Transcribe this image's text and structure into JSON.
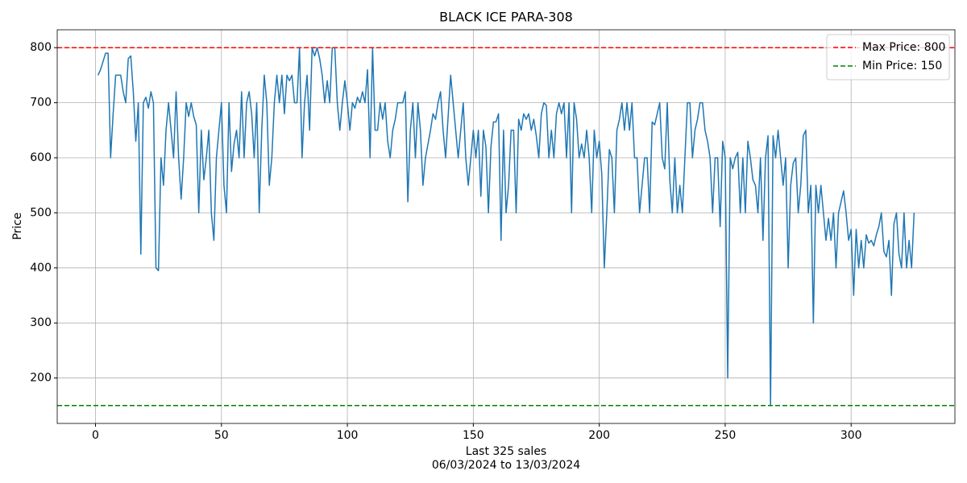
{
  "chart_data": {
    "type": "line",
    "title": "BLACK ICE PARA-308",
    "xlabel": [
      "Last 325 sales",
      "06/03/2024 to 13/03/2024"
    ],
    "ylabel": "Price",
    "x": [
      1,
      2,
      3,
      4,
      5,
      6,
      7,
      8,
      9,
      10,
      11,
      12,
      13,
      14,
      15,
      16,
      17,
      18,
      19,
      20,
      21,
      22,
      23,
      24,
      25,
      26,
      27,
      28,
      29,
      30,
      31,
      32,
      33,
      34,
      35,
      36,
      37,
      38,
      39,
      40,
      41,
      42,
      43,
      44,
      45,
      46,
      47,
      48,
      49,
      50,
      51,
      52,
      53,
      54,
      55,
      56,
      57,
      58,
      59,
      60,
      61,
      62,
      63,
      64,
      65,
      66,
      67,
      68,
      69,
      70,
      71,
      72,
      73,
      74,
      75,
      76,
      77,
      78,
      79,
      80,
      81,
      82,
      83,
      84,
      85,
      86,
      87,
      88,
      89,
      90,
      91,
      92,
      93,
      94,
      95,
      96,
      97,
      98,
      99,
      100,
      101,
      102,
      103,
      104,
      105,
      106,
      107,
      108,
      109,
      110,
      111,
      112,
      113,
      114,
      115,
      116,
      117,
      118,
      119,
      120,
      121,
      122,
      123,
      124,
      125,
      126,
      127,
      128,
      129,
      130,
      131,
      132,
      133,
      134,
      135,
      136,
      137,
      138,
      139,
      140,
      141,
      142,
      143,
      144,
      145,
      146,
      147,
      148,
      149,
      150,
      151,
      152,
      153,
      154,
      155,
      156,
      157,
      158,
      159,
      160,
      161,
      162,
      163,
      164,
      165,
      166,
      167,
      168,
      169,
      170,
      171,
      172,
      173,
      174,
      175,
      176,
      177,
      178,
      179,
      180,
      181,
      182,
      183,
      184,
      185,
      186,
      187,
      188,
      189,
      190,
      191,
      192,
      193,
      194,
      195,
      196,
      197,
      198,
      199,
      200,
      201,
      202,
      203,
      204,
      205,
      206,
      207,
      208,
      209,
      210,
      211,
      212,
      213,
      214,
      215,
      216,
      217,
      218,
      219,
      220,
      221,
      222,
      223,
      224,
      225,
      226,
      227,
      228,
      229,
      230,
      231,
      232,
      233,
      234,
      235,
      236,
      237,
      238,
      239,
      240,
      241,
      242,
      243,
      244,
      245,
      246,
      247,
      248,
      249,
      250,
      251,
      252,
      253,
      254,
      255,
      256,
      257,
      258,
      259,
      260,
      261,
      262,
      263,
      264,
      265,
      266,
      267,
      268,
      269,
      270,
      271,
      272,
      273,
      274,
      275,
      276,
      277,
      278,
      279,
      280,
      281,
      282,
      283,
      284,
      285,
      286,
      287,
      288,
      289,
      290,
      291,
      292,
      293,
      294,
      295,
      296,
      297,
      298,
      299,
      300,
      301,
      302,
      303,
      304,
      305,
      306,
      307,
      308,
      309,
      310,
      311,
      312,
      313,
      314,
      315,
      316,
      317,
      318,
      319,
      320,
      321,
      322,
      323,
      324,
      325
    ],
    "series": [
      {
        "color": "#1f77b4",
        "values": [
          750,
          760,
          775,
          790,
          790,
          600,
          680,
          750,
          750,
          750,
          720,
          700,
          780,
          785,
          720,
          630,
          700,
          425,
          700,
          710,
          690,
          720,
          700,
          400,
          395,
          600,
          550,
          650,
          700,
          650,
          600,
          720,
          600,
          525,
          600,
          700,
          675,
          700,
          675,
          660,
          500,
          650,
          560,
          600,
          650,
          500,
          450,
          600,
          650,
          700,
          550,
          500,
          700,
          575,
          625,
          650,
          600,
          720,
          600,
          700,
          720,
          680,
          600,
          700,
          500,
          650,
          750,
          700,
          550,
          600,
          700,
          750,
          700,
          750,
          680,
          750,
          740,
          750,
          700,
          700,
          800,
          600,
          700,
          750,
          650,
          800,
          785,
          800,
          780,
          750,
          700,
          740,
          700,
          800,
          800,
          700,
          650,
          700,
          740,
          700,
          650,
          700,
          690,
          710,
          700,
          720,
          700,
          760,
          600,
          800,
          650,
          650,
          700,
          670,
          700,
          630,
          600,
          650,
          670,
          700,
          700,
          700,
          720,
          520,
          650,
          700,
          600,
          700,
          650,
          550,
          600,
          625,
          650,
          680,
          670,
          700,
          720,
          650,
          600,
          675,
          750,
          700,
          650,
          600,
          650,
          700,
          600,
          550,
          600,
          650,
          600,
          650,
          530,
          650,
          620,
          500,
          620,
          665,
          665,
          680,
          450,
          650,
          500,
          550,
          650,
          650,
          500,
          670,
          650,
          680,
          670,
          680,
          650,
          670,
          640,
          600,
          680,
          700,
          695,
          600,
          650,
          600,
          680,
          700,
          680,
          700,
          600,
          700,
          500,
          700,
          670,
          600,
          625,
          600,
          650,
          600,
          500,
          650,
          600,
          630,
          570,
          400,
          500,
          615,
          600,
          500,
          650,
          670,
          700,
          650,
          700,
          650,
          700,
          600,
          600,
          500,
          550,
          600,
          600,
          500,
          665,
          660,
          680,
          700,
          600,
          580,
          700,
          560,
          500,
          600,
          500,
          550,
          500,
          600,
          700,
          700,
          600,
          650,
          670,
          700,
          700,
          650,
          630,
          600,
          500,
          600,
          600,
          475,
          630,
          600,
          200,
          600,
          580,
          600,
          610,
          500,
          600,
          500,
          630,
          600,
          560,
          550,
          500,
          600,
          450,
          600,
          640,
          150,
          640,
          600,
          650,
          600,
          550,
          600,
          400,
          550,
          590,
          600,
          500,
          550,
          640,
          650,
          500,
          550,
          300,
          550,
          500,
          550,
          500,
          450,
          490,
          450,
          500,
          400,
          500,
          520,
          540,
          500,
          450,
          470,
          350,
          470,
          400,
          450,
          400,
          460,
          445,
          450,
          440,
          460,
          475,
          500,
          430,
          420,
          450,
          350,
          480,
          500,
          425,
          400,
          500,
          400,
          450,
          400,
          500
        ]
      }
    ],
    "hlines": [
      {
        "name": "Max Price: 800",
        "value": 800,
        "color": "#ff0000"
      },
      {
        "name": "Min Price: 150",
        "value": 150,
        "color": "#008000"
      }
    ],
    "xlim": [
      -15.2,
      341.2
    ],
    "xticks": [
      0,
      50,
      100,
      150,
      200,
      250,
      300
    ],
    "ylim": [
      117.5,
      832.5
    ],
    "yticks": [
      200,
      300,
      400,
      500,
      600,
      700,
      800
    ],
    "grid": true,
    "legend": "upper-right"
  }
}
